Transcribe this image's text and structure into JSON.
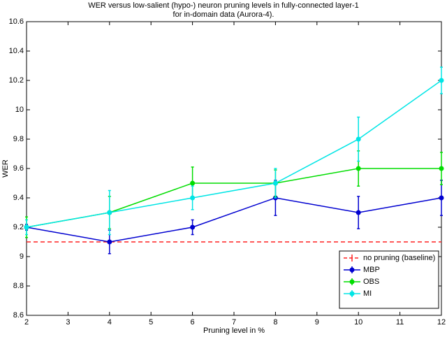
{
  "chart_data": {
    "type": "line",
    "title": [
      "WER  versus  low-salient  (hypo-)  neuron  pruning  levels  in  fully-connected  layer-1",
      "for in-domain data (Aurora-4)."
    ],
    "x_label": "Pruning level in %",
    "y_label": "WER",
    "x": [
      2,
      4,
      6,
      8,
      10,
      12
    ],
    "xlim": [
      2,
      12
    ],
    "ylim": [
      8.6,
      10.6
    ],
    "xticks": [
      2,
      3,
      4,
      5,
      6,
      7,
      8,
      9,
      10,
      11,
      12
    ],
    "yticks": [
      8.6,
      8.8,
      9,
      9.2,
      9.4,
      9.6,
      9.8,
      10,
      10.2,
      10.4,
      10.6
    ],
    "legend": "lower right",
    "series": [
      {
        "name": "no pruning (baseline)",
        "color": "#ff2020",
        "style": "dashed",
        "values": [
          9.1,
          9.1,
          9.1,
          9.1,
          9.1,
          9.1
        ]
      },
      {
        "name": "MBP",
        "color": "#0000d0",
        "style": "solid",
        "values": [
          9.2,
          9.1,
          9.2,
          9.4,
          9.3,
          9.4
        ],
        "errors": [
          0.02,
          0.08,
          0.05,
          0.12,
          0.11,
          0.12
        ]
      },
      {
        "name": "OBS",
        "color": "#00dd00",
        "style": "solid",
        "values": [
          9.2,
          9.3,
          9.5,
          9.5,
          9.6,
          9.6
        ],
        "errors": [
          0.07,
          0.11,
          0.11,
          0.09,
          0.12,
          0.11
        ]
      },
      {
        "name": "MI",
        "color": "#00e5e5",
        "style": "solid",
        "values": [
          9.2,
          9.3,
          9.4,
          9.5,
          9.8,
          10.2
        ],
        "errors": [
          0.05,
          0.15,
          0.08,
          0.1,
          0.15,
          0.09
        ]
      }
    ]
  }
}
